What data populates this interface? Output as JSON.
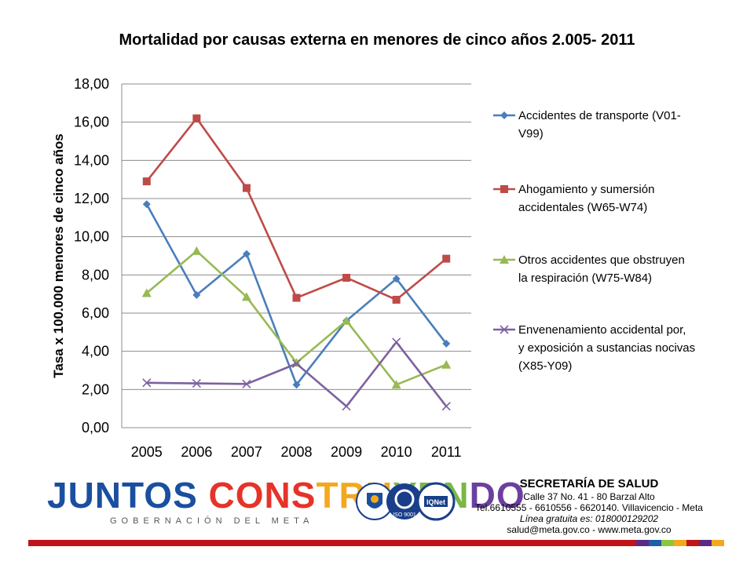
{
  "chart_data": {
    "type": "line",
    "title": "Mortalidad por causas externa en menores de cinco años 2.005- 2011",
    "ylabel": "Tasa x 100.000 menores de cinco años",
    "xlabel": "",
    "categories": [
      "2005",
      "2006",
      "2007",
      "2008",
      "2009",
      "2010",
      "2011"
    ],
    "ylim": [
      0,
      18
    ],
    "yticks": [
      "0,00",
      "2,00",
      "4,00",
      "6,00",
      "8,00",
      "10,00",
      "12,00",
      "14,00",
      "16,00",
      "18,00"
    ],
    "grid": true,
    "legend_position": "right",
    "series": [
      {
        "name_lines": [
          "Accidentes de transporte (V01-",
          "V99)"
        ],
        "color": "#4a7ebb",
        "marker": "diamond",
        "values": [
          11.7,
          6.95,
          9.1,
          2.25,
          5.6,
          7.8,
          4.4
        ]
      },
      {
        "name_lines": [
          "Ahogamiento y sumersión",
          "accidentales (W65-W74)"
        ],
        "color": "#be4b48",
        "marker": "square",
        "values": [
          12.9,
          16.2,
          12.55,
          6.8,
          7.85,
          6.7,
          8.85
        ]
      },
      {
        "name_lines": [
          "Otros accidentes que obstruyen",
          "la respiración (W75-W84)"
        ],
        "color": "#98b954",
        "marker": "triangle",
        "values": [
          7.05,
          9.25,
          6.85,
          3.4,
          5.6,
          2.25,
          3.3
        ]
      },
      {
        "name_lines": [
          "Envenenamiento accidental por,",
          "y exposición a sustancias nocivas",
          "(X85-Y09)"
        ],
        "color": "#7d60a0",
        "marker": "x",
        "values": [
          2.35,
          2.32,
          2.29,
          3.35,
          1.12,
          4.48,
          1.12
        ]
      }
    ]
  },
  "footer": {
    "logo_parts": [
      "JUNTOS",
      " CONS",
      "TRU",
      "YEN",
      "DO"
    ],
    "logo_subtitle": "GOBERNACIÓN DEL META",
    "contact_heading": "SECRETARÍA DE SALUD",
    "contact_address": "Calle 37 No. 41 - 80 Barzal Alto",
    "contact_phone": "Tel.6610555 - 6610556 - 6620140. Villavicencio - Meta",
    "contact_line": "Línea gratuita es: 018000129202",
    "contact_email": "salud@meta.gov.co - www.meta.gov.co",
    "seal_texts": [
      "ISO 9001",
      "IQNet"
    ],
    "strip_colors": [
      "#5b2a82",
      "#1d5fa8",
      "#8cc63f",
      "#f4a81d",
      "#c0141b",
      "#5b2a82",
      "#f4a81d"
    ]
  }
}
